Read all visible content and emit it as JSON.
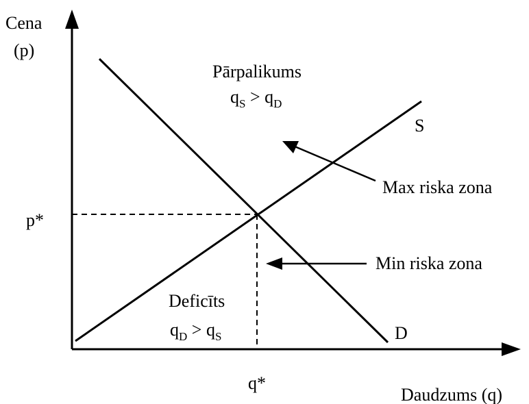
{
  "axes": {
    "y_label": [
      "Cena",
      "(p)"
    ],
    "x_label": "Daudzums (q)",
    "p_star": "p*",
    "q_star": "q*"
  },
  "curves": {
    "supply": "S",
    "demand": "D"
  },
  "surplus": {
    "title": "Pārpalikums",
    "condition": [
      "q",
      "S",
      " > q",
      "D"
    ]
  },
  "deficit": {
    "title": "Deficīts",
    "condition": [
      "q",
      "D",
      " > q",
      "S"
    ]
  },
  "annotations": {
    "max_zone": "Max riska zona",
    "min_zone": "Min riska zona"
  }
}
